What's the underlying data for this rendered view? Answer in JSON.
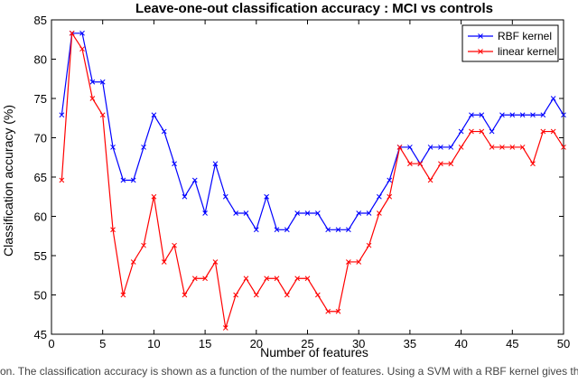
{
  "chart_data": {
    "type": "line",
    "title": "Leave-one-out classification accuracy : MCI vs controls",
    "xlabel": "Number of features",
    "ylabel": "Classification  accuracy (%)",
    "xlim": [
      0,
      50
    ],
    "ylim": [
      45,
      85
    ],
    "xticks": [
      0,
      5,
      10,
      15,
      20,
      25,
      30,
      35,
      40,
      45,
      50
    ],
    "yticks": [
      45,
      50,
      55,
      60,
      65,
      70,
      75,
      80,
      85
    ],
    "grid": false,
    "legend_position": "top-right",
    "x": [
      1,
      2,
      3,
      4,
      5,
      6,
      7,
      8,
      9,
      10,
      11,
      12,
      13,
      14,
      15,
      16,
      17,
      18,
      19,
      20,
      21,
      22,
      23,
      24,
      25,
      26,
      27,
      28,
      29,
      30,
      31,
      32,
      33,
      34,
      35,
      36,
      37,
      38,
      39,
      40,
      41,
      42,
      43,
      44,
      45,
      46,
      47,
      48,
      49,
      50
    ],
    "series": [
      {
        "name": "RBF kernel",
        "color": "#0000ff",
        "marker": "x",
        "values": [
          72.9,
          83.3,
          83.3,
          77.1,
          77.1,
          68.8,
          64.6,
          64.6,
          68.8,
          72.9,
          70.8,
          66.7,
          62.5,
          64.6,
          60.4,
          66.7,
          62.5,
          60.4,
          60.4,
          58.3,
          62.5,
          58.3,
          58.3,
          60.4,
          60.4,
          60.4,
          58.3,
          58.3,
          58.3,
          60.4,
          60.4,
          62.5,
          64.6,
          68.8,
          68.8,
          66.7,
          68.8,
          68.8,
          68.8,
          70.8,
          72.9,
          72.9,
          70.8,
          72.9,
          72.9,
          72.9,
          72.9,
          72.9,
          75.0,
          72.9
        ]
      },
      {
        "name": "linear kernel",
        "color": "#ff0000",
        "marker": "x",
        "values": [
          64.6,
          83.3,
          81.3,
          75.0,
          72.9,
          58.3,
          50.0,
          54.2,
          56.3,
          62.5,
          54.2,
          56.3,
          50.0,
          52.1,
          52.1,
          54.2,
          45.8,
          50.0,
          52.1,
          50.0,
          52.1,
          52.1,
          50.0,
          52.1,
          52.1,
          50.0,
          47.9,
          47.9,
          54.2,
          54.2,
          56.3,
          60.4,
          62.5,
          68.8,
          66.7,
          66.7,
          64.6,
          66.7,
          66.7,
          68.8,
          70.8,
          70.8,
          68.8,
          68.8,
          68.8,
          68.8,
          66.7,
          70.8,
          70.8,
          68.8
        ]
      }
    ]
  },
  "caption": "tion. The classification accuracy is shown as a function of the number of features. Using a SVM with a RBF kernel gives the"
}
